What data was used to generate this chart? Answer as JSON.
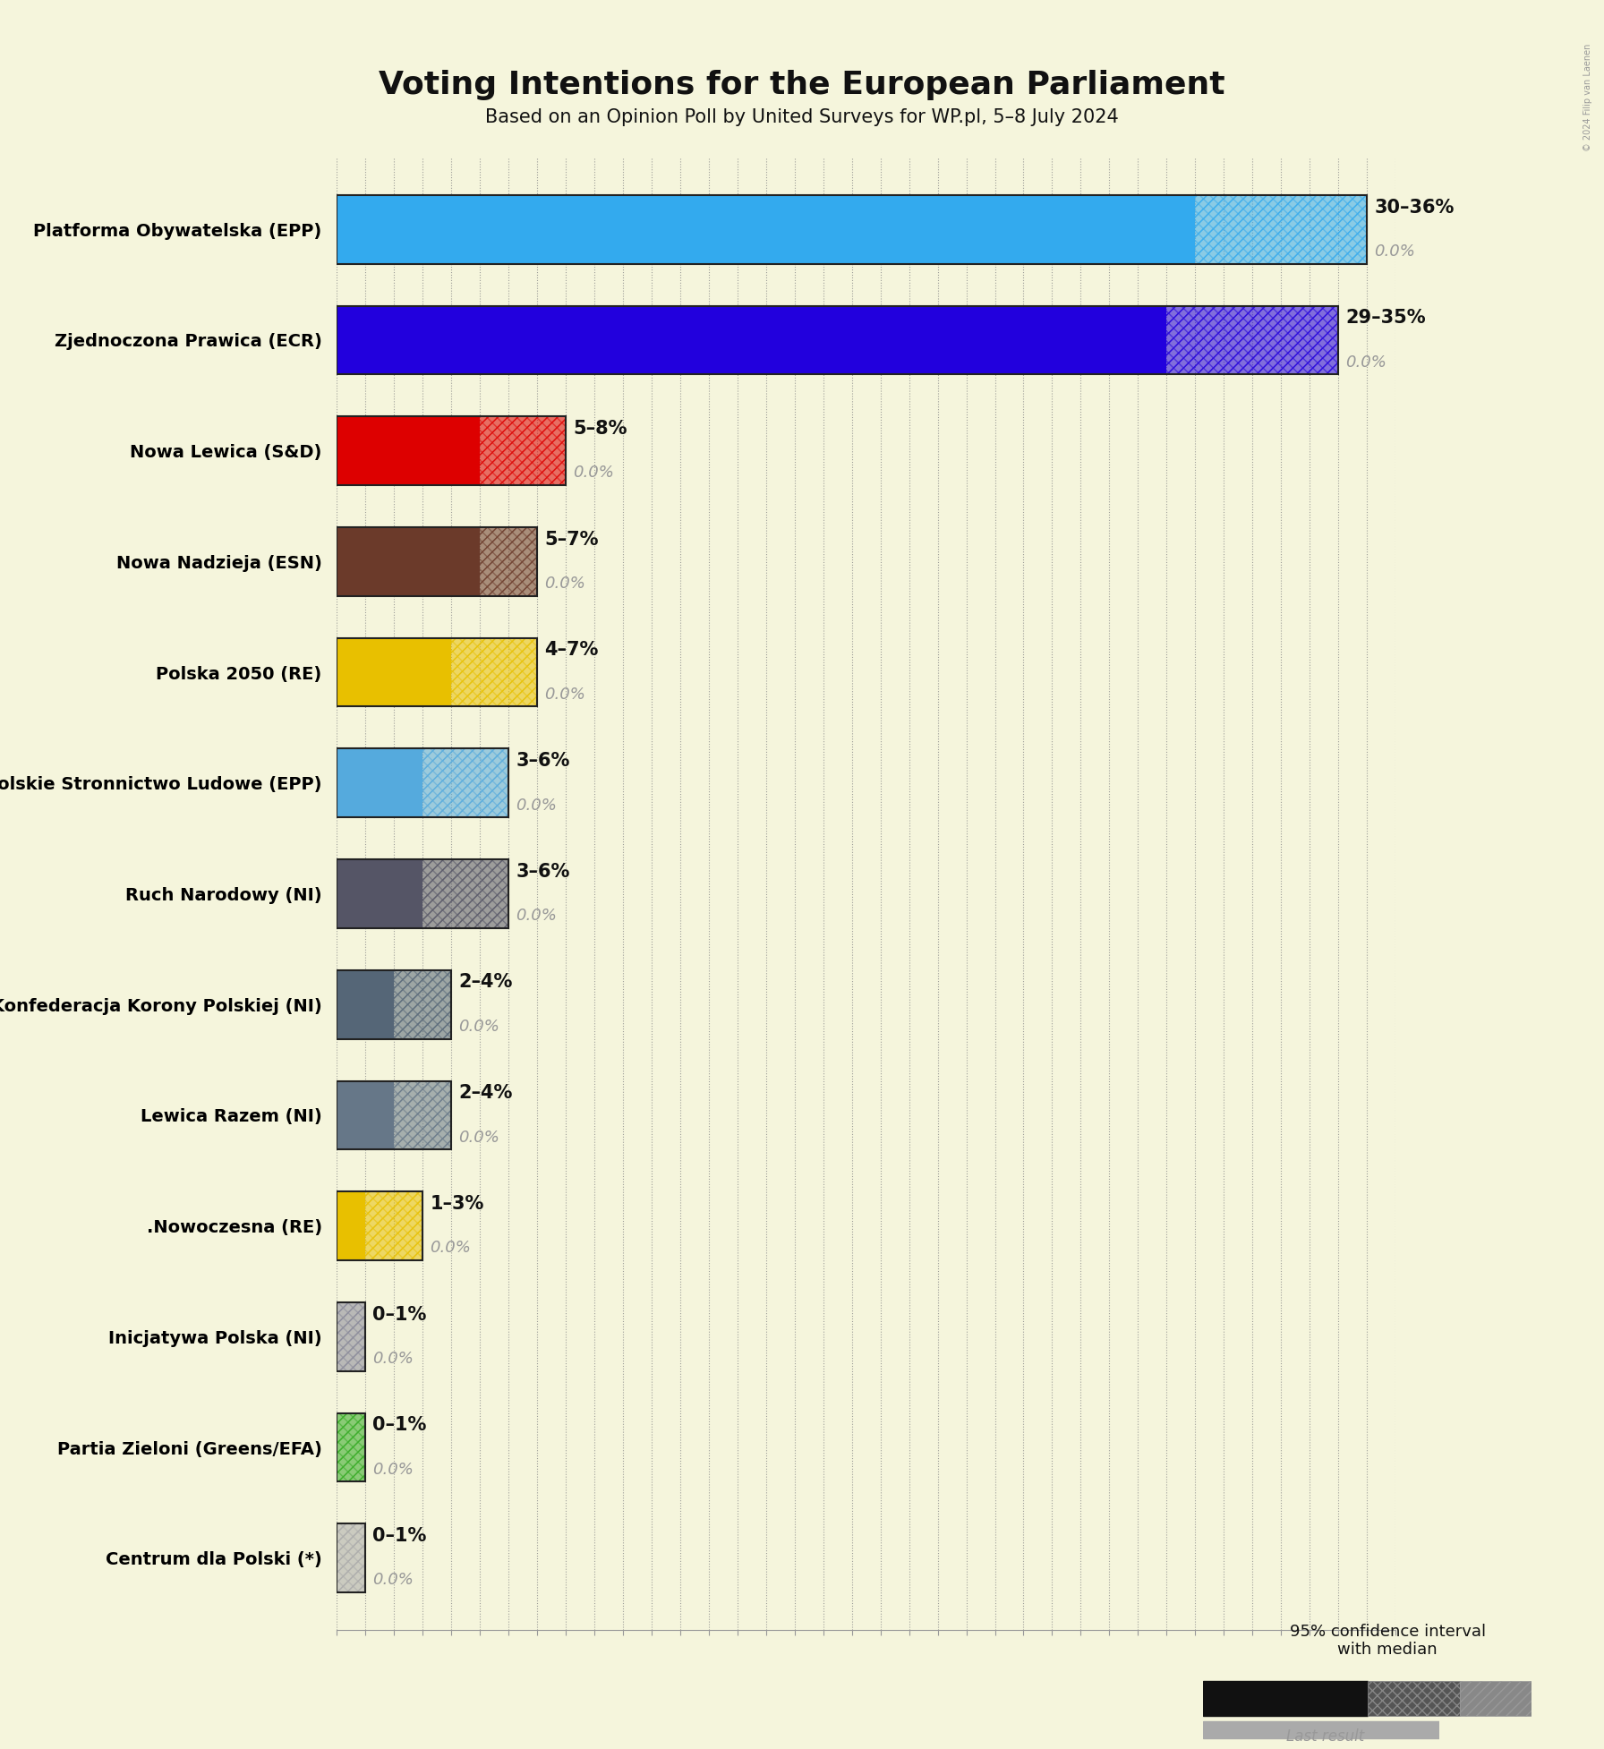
{
  "title": "Voting Intentions for the European Parliament",
  "subtitle": "Based on an Opinion Poll by United Surveys for WP.pl, 5–8 July 2024",
  "copyright": "© 2024 Filip van Laenen",
  "background_color": "#F5F5DC",
  "parties": [
    {
      "name": "Platforma Obywatelska (EPP)",
      "low": 30,
      "high": 36,
      "last": 0.0,
      "color": "#33AAEE"
    },
    {
      "name": "Zjednoczona Prawica (ECR)",
      "low": 29,
      "high": 35,
      "last": 0.0,
      "color": "#2200DD"
    },
    {
      "name": "Nowa Lewica (S&D)",
      "low": 5,
      "high": 8,
      "last": 0.0,
      "color": "#DD0000"
    },
    {
      "name": "Nowa Nadzieja (ESN)",
      "low": 5,
      "high": 7,
      "last": 0.0,
      "color": "#6B3A2A"
    },
    {
      "name": "Polska 2050 (RE)",
      "low": 4,
      "high": 7,
      "last": 0.0,
      "color": "#E8C000"
    },
    {
      "name": "Polskie Stronnictwo Ludowe (EPP)",
      "low": 3,
      "high": 6,
      "last": 0.0,
      "color": "#55AADD"
    },
    {
      "name": "Ruch Narodowy (NI)",
      "low": 3,
      "high": 6,
      "last": 0.0,
      "color": "#555566"
    },
    {
      "name": "Konfederacja Korony Polskiej (NI)",
      "low": 2,
      "high": 4,
      "last": 0.0,
      "color": "#556677"
    },
    {
      "name": "Lewica Razem (NI)",
      "low": 2,
      "high": 4,
      "last": 0.0,
      "color": "#667788"
    },
    {
      "name": ".Nowoczesna (RE)",
      "low": 1,
      "high": 3,
      "last": 0.0,
      "color": "#E8C000"
    },
    {
      "name": "Inicjatywa Polska (NI)",
      "low": 0,
      "high": 1,
      "last": 0.0,
      "color": "#888899"
    },
    {
      "name": "Partia Zieloni (Greens/EFA)",
      "low": 0,
      "high": 1,
      "last": 0.0,
      "color": "#33AA22"
    },
    {
      "name": "Centrum dla Polski (*)",
      "low": 0,
      "high": 1,
      "last": 0.0,
      "color": "#AAAAAA"
    }
  ],
  "xlim_max": 37,
  "bar_height": 0.62,
  "label_range_color": "#111111",
  "label_last_color": "#999999"
}
